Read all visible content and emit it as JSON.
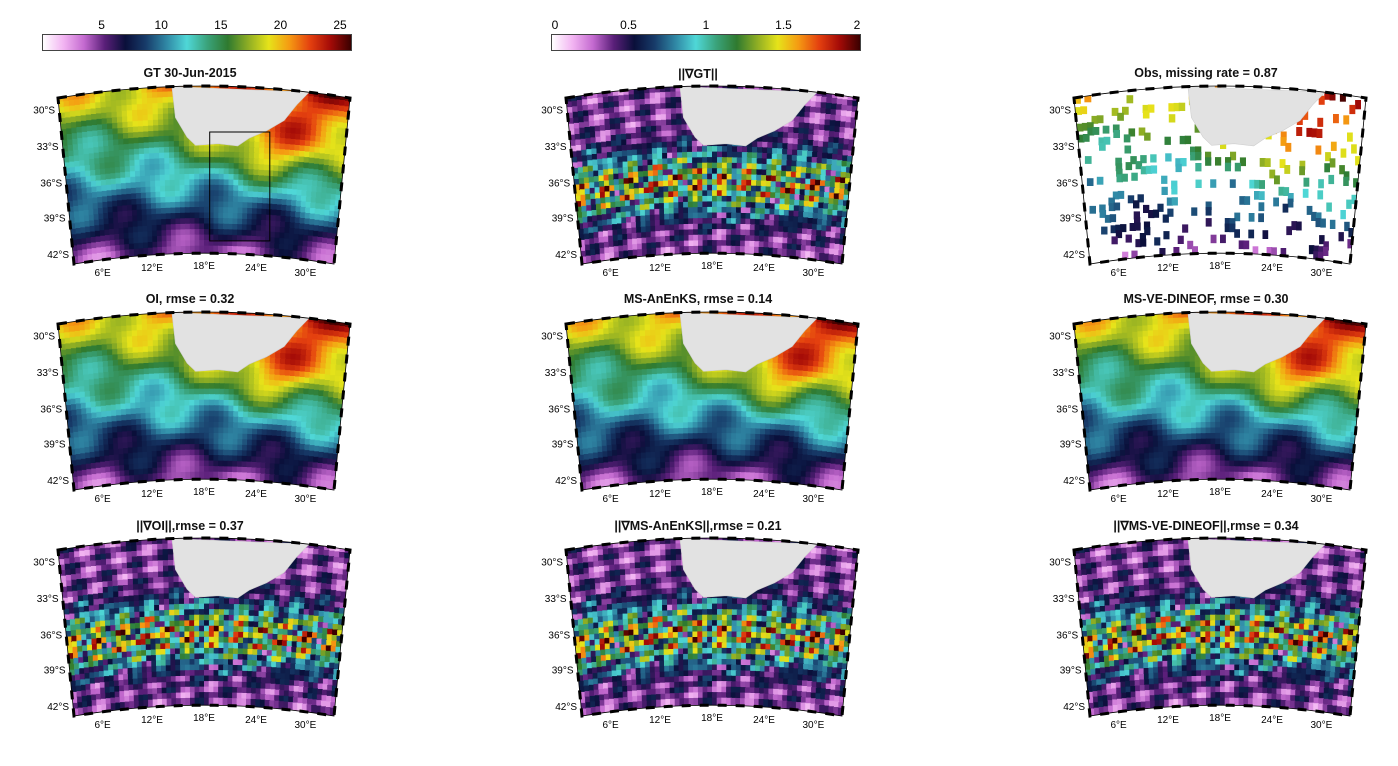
{
  "colorbars": [
    {
      "ticks": [
        "5",
        "10",
        "15",
        "20",
        "25"
      ],
      "values": [
        5,
        10,
        15,
        20,
        25
      ],
      "range": [
        0,
        26
      ],
      "palette": "sst"
    },
    {
      "ticks": [
        "0",
        "0.5",
        "1",
        "1.5",
        "2"
      ],
      "values": [
        0,
        0.5,
        1,
        1.5,
        2
      ],
      "range": [
        0,
        2
      ],
      "palette": "sst"
    }
  ],
  "axes": {
    "lat_labels": [
      "30°S",
      "33°S",
      "36°S",
      "39°S",
      "42°S"
    ],
    "lon_labels": [
      "6°E",
      "12°E",
      "18°E",
      "24°E",
      "30°E"
    ]
  },
  "panels": [
    {
      "title": "GT 30-Jun-2015",
      "kind": "sst",
      "box": true
    },
    {
      "title": "||∇GT||",
      "kind": "grad"
    },
    {
      "title": "Obs, missing rate = 0.87",
      "kind": "obs"
    },
    {
      "title": "OI, rmse = 0.32",
      "kind": "sst"
    },
    {
      "title": "MS-AnEnKS, rmse = 0.14",
      "kind": "sst"
    },
    {
      "title": "MS-VE-DINEOF, rmse = 0.30",
      "kind": "sst"
    },
    {
      "title": "||∇OI||,rmse = 0.37",
      "kind": "grad"
    },
    {
      "title": "||∇MS-AnEnKS||,rmse = 0.21",
      "kind": "grad"
    },
    {
      "title": "||∇MS-VE-DINEOF||,rmse = 0.34",
      "kind": "grad"
    }
  ]
}
